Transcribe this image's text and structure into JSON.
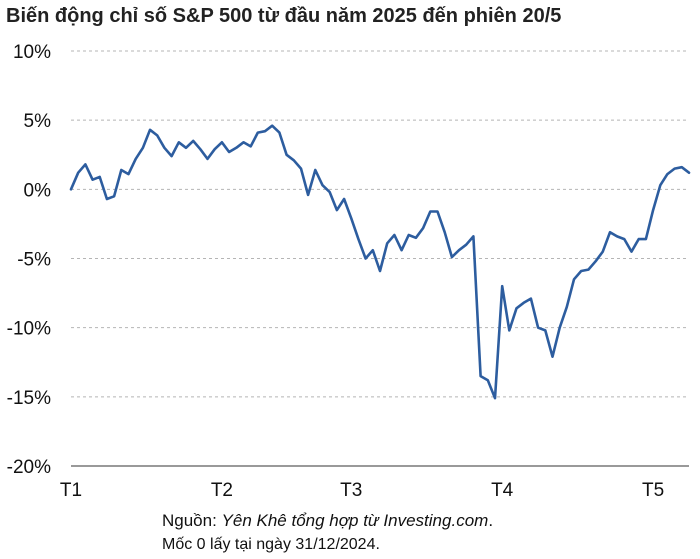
{
  "chart_data": {
    "type": "line",
    "title": "Biến động chỉ số S&P 500 từ đầu năm 2025 đến phiên 20/5",
    "xlabel": "",
    "ylabel": "",
    "ylim": [
      -20,
      10
    ],
    "y_ticks": [
      10,
      5,
      0,
      -5,
      -10,
      -15,
      -20
    ],
    "y_tick_labels": [
      "10%",
      "5%",
      "0%",
      "-5%",
      "-10%",
      "-15%",
      "-20%"
    ],
    "x_ticks": [
      0,
      21,
      39,
      60,
      81
    ],
    "x_tick_labels": [
      "T1",
      "T2",
      "T3",
      "T4",
      "T5"
    ],
    "grid": "horizontal dashed",
    "line_color": "#2d5d9f",
    "series": [
      {
        "values": [
          0,
          1.2,
          1.8,
          0.7,
          0.9,
          -0.7,
          -0.5,
          1.4,
          1.1,
          2.2,
          3.0,
          4.3,
          3.9,
          3.0,
          2.4,
          3.4,
          3.0,
          3.5,
          2.9,
          2.2,
          2.9,
          3.4,
          2.7,
          3.0,
          3.4,
          3.1,
          4.1,
          4.2,
          4.6,
          4.1,
          2.5,
          2.1,
          1.5,
          -0.4,
          1.4,
          0.3,
          -0.2,
          -1.5,
          -0.7,
          -2.1,
          -3.6,
          -5.0,
          -4.4,
          -5.9,
          -3.9,
          -3.3,
          -4.4,
          -3.3,
          -3.5,
          -2.8,
          -1.6,
          -1.6,
          -3.1,
          -4.9,
          -4.4,
          -4.0,
          -3.4,
          -13.5,
          -13.8,
          -15.1,
          -7.0,
          -10.2,
          -8.6,
          -8.2,
          -7.9,
          -10.0,
          -10.2,
          -12.1,
          -10.0,
          -8.5,
          -6.5,
          -5.9,
          -5.8,
          -5.2,
          -4.5,
          -3.1,
          -3.4,
          -3.6,
          -4.5,
          -3.6,
          -3.6,
          -1.5,
          0.3,
          1.1,
          1.5,
          1.6,
          1.2
        ]
      }
    ]
  },
  "source": {
    "prefix": "Nguồn: ",
    "text": "Yên Khê tổng hợp từ Investing.com",
    "suffix": "."
  },
  "note": "Mốc 0 lấy tại ngày 31/12/2024."
}
